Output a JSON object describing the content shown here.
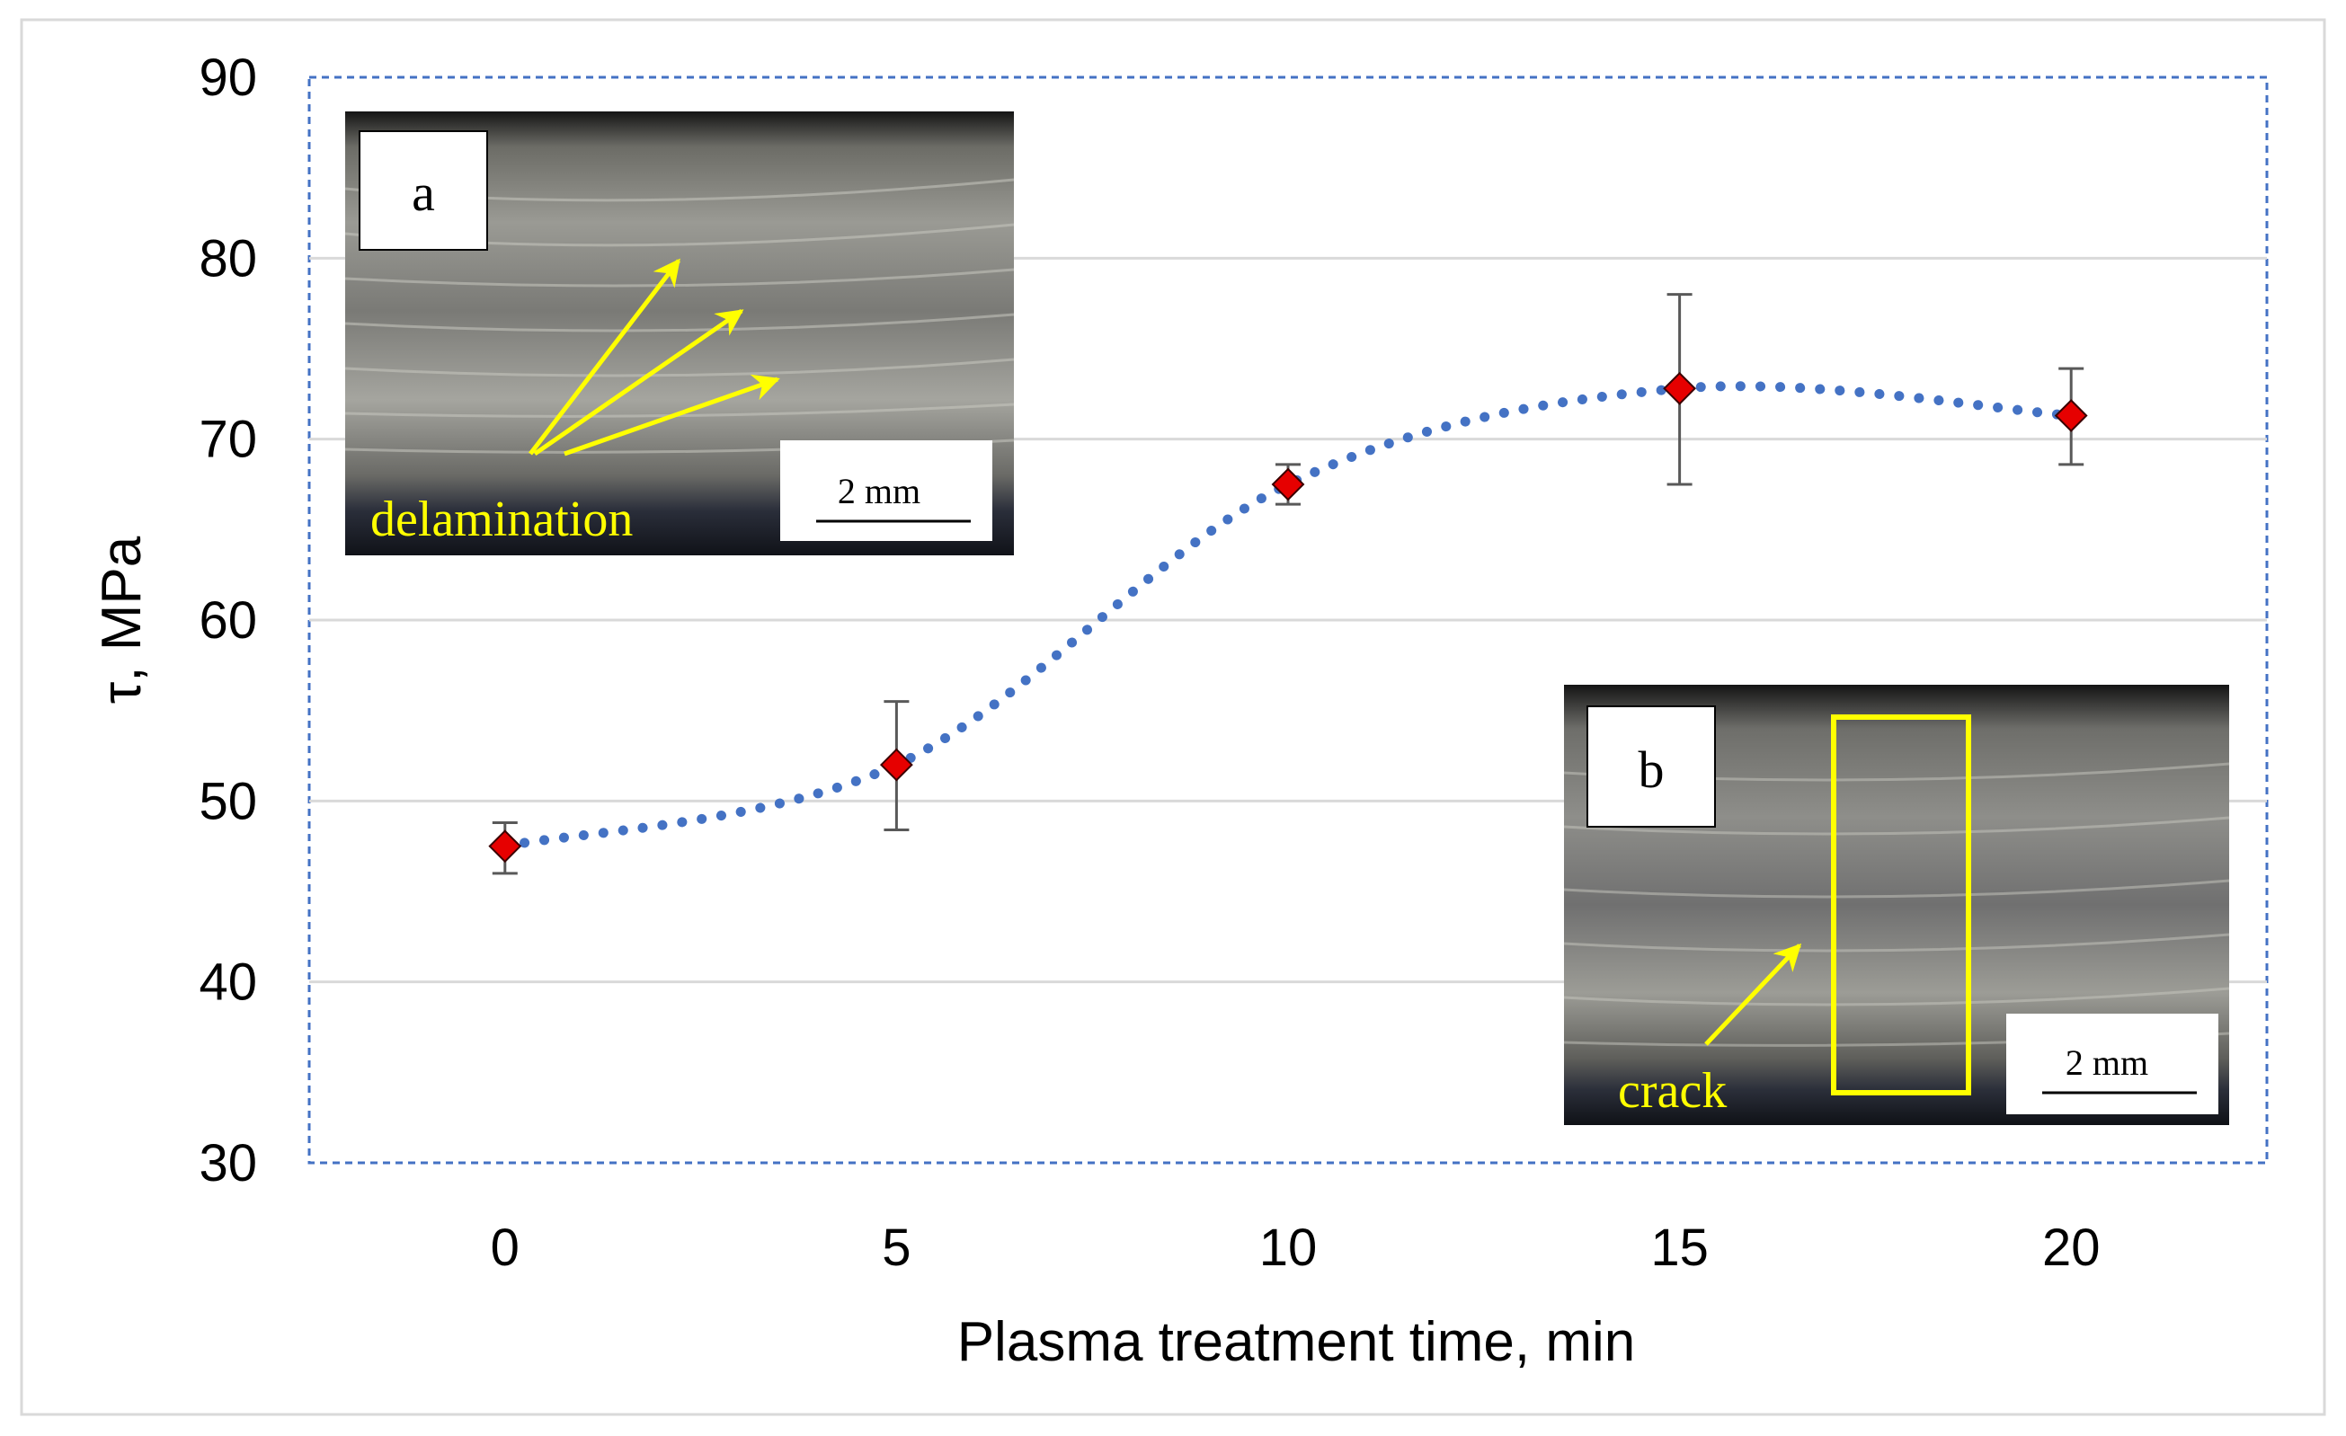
{
  "chart_data": {
    "type": "scatter",
    "xlabel": "Plasma treatment time, min",
    "ylabel": "τ, MPa",
    "xlim": [
      -2.5,
      22.5
    ],
    "ylim": [
      30,
      90
    ],
    "x_ticks": [
      0,
      5,
      10,
      15,
      20
    ],
    "y_ticks": [
      30,
      40,
      50,
      60,
      70,
      80,
      90
    ],
    "grid": "horizontal",
    "series": [
      {
        "name": "τ",
        "x": [
          0,
          5,
          10,
          15,
          20
        ],
        "y": [
          47.5,
          52,
          67.5,
          72.8,
          71.3
        ],
        "error_low": [
          46,
          48.4,
          66.4,
          67.5,
          68.6
        ],
        "error_high": [
          48.8,
          55.5,
          68.6,
          78,
          73.9
        ],
        "marker": "diamond",
        "marker_color": "#e60000",
        "trend_line": "dotted",
        "trend_color": "#4472c4"
      }
    ],
    "insets": [
      {
        "label": "a",
        "annotation": "delamination",
        "scale_bar": "2 mm"
      },
      {
        "label": "b",
        "annotation": "crack",
        "scale_bar": "2 mm"
      }
    ]
  },
  "colors": {
    "marker": "#e60000",
    "trend": "#4472c4",
    "annotation": "#ffff00",
    "grid": "#d9d9d9"
  }
}
